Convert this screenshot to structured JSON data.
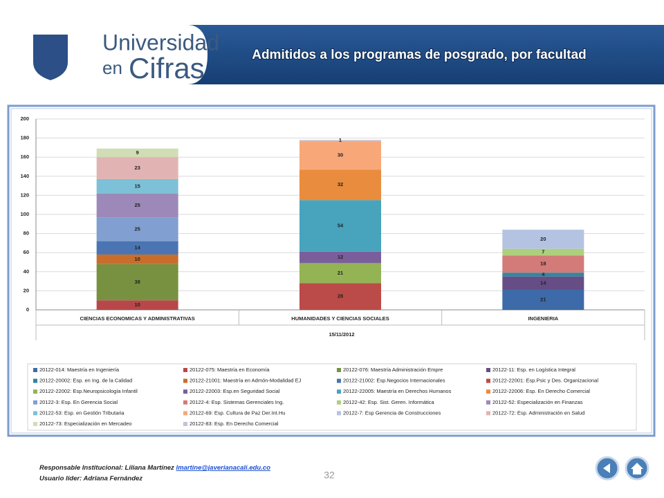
{
  "header": {
    "title": "Admitidos a los programas de posgrado, por facultad",
    "logo_line1": "Universidad",
    "logo_line2a": "en",
    "logo_line2b": "Cifras"
  },
  "chart_data": {
    "type": "bar",
    "stacked": true,
    "categories": [
      "CIENCIAS ECONOMICAS Y ADMINISTRATIVAS",
      "HUMANIDADES Y CIENCIAS SOCIALES",
      "INGENIERIA"
    ],
    "xlabel": "15/11/2012",
    "ylim": [
      0,
      200
    ],
    "yticks": [
      0,
      20,
      40,
      60,
      80,
      100,
      120,
      140,
      160,
      180,
      200
    ],
    "grid": true,
    "series": [
      {
        "name": "20122-014: Maestría en Ingeniería",
        "color": "#3d6aa8",
        "values": [
          null,
          null,
          21
        ]
      },
      {
        "name": "20122-075: Maestría en Economía",
        "color": "#b8474a",
        "values": [
          10,
          null,
          null
        ]
      },
      {
        "name": "20122-076: Maestría Administración Empre",
        "color": "#779140",
        "values": [
          38,
          null,
          null
        ]
      },
      {
        "name": "20122-11: Esp. en Logística Integral",
        "color": "#674d86",
        "values": [
          null,
          null,
          14
        ]
      },
      {
        "name": "20122-20002: Esp. en Ing. de la Calidad",
        "color": "#31869e",
        "values": [
          null,
          null,
          4
        ]
      },
      {
        "name": "20122-21001: Maestría en Admón-Modalidad EJ",
        "color": "#c96d2c",
        "values": [
          10,
          null,
          null
        ]
      },
      {
        "name": "20122-21002: Esp.Negocios Internacionales",
        "color": "#4a75b2",
        "values": [
          14,
          null,
          null
        ]
      },
      {
        "name": "20122-22001: Esp.Psic y Des. Organizacional",
        "color": "#bb4b48",
        "values": [
          null,
          28,
          null
        ]
      },
      {
        "name": "20122-22002: Esp.Neuropsicología Infantil",
        "color": "#93b355",
        "values": [
          null,
          21,
          null
        ]
      },
      {
        "name": "20122-22003: Esp.en Seguridad Social",
        "color": "#7a5e9c",
        "values": [
          null,
          12,
          null
        ]
      },
      {
        "name": "20122-22005: Maestría en Derechos Humanos",
        "color": "#48a3bd",
        "values": [
          null,
          54,
          null
        ]
      },
      {
        "name": "20122-22006: Esp. En Derecho Comercial",
        "color": "#e98c3e",
        "values": [
          null,
          32,
          null
        ]
      },
      {
        "name": "20122-3: Esp. En Gerencia Social",
        "color": "#819fd0",
        "values": [
          25,
          null,
          null
        ]
      },
      {
        "name": "20122-4: Esp. Sistemas Gerenciales Ing.",
        "color": "#d27b79",
        "values": [
          null,
          null,
          18
        ]
      },
      {
        "name": "20122-42: Esp. Sist. Geren. Informática",
        "color": "#aed07c",
        "values": [
          null,
          null,
          7
        ]
      },
      {
        "name": "20122-52: Especialización en Finanzas",
        "color": "#9c89ba",
        "values": [
          25,
          null,
          null
        ]
      },
      {
        "name": "20122-53: Esp. en Gestión Tributaria",
        "color": "#7cc1d7",
        "values": [
          15,
          null,
          null
        ]
      },
      {
        "name": "20122-69: Esp. Cultura de Paz Der.Int.Hu",
        "color": "#f8a878",
        "values": [
          null,
          30,
          null
        ]
      },
      {
        "name": "20122-7: Esp Gerencia de Construcciones",
        "color": "#b4c3e1",
        "values": [
          null,
          null,
          20
        ]
      },
      {
        "name": "20122-72: Esp. Administración en Salud",
        "color": "#e1b4b3",
        "values": [
          23,
          null,
          null
        ]
      },
      {
        "name": "20122-73: Especialización en Mercadeo",
        "color": "#d1ddb5",
        "values": [
          9,
          null,
          null
        ]
      },
      {
        "name": "20122-83: Esp. En Derecho Comercial",
        "color": "#c8bfd9",
        "values": [
          null,
          1,
          null
        ]
      }
    ]
  },
  "footer": {
    "responsible": "Responsable Institucional: Liliana Martínez",
    "email": "lmartine@javerianacali.edu.co",
    "user": "Usuario líder: Adriana Fernández",
    "page": 32
  }
}
